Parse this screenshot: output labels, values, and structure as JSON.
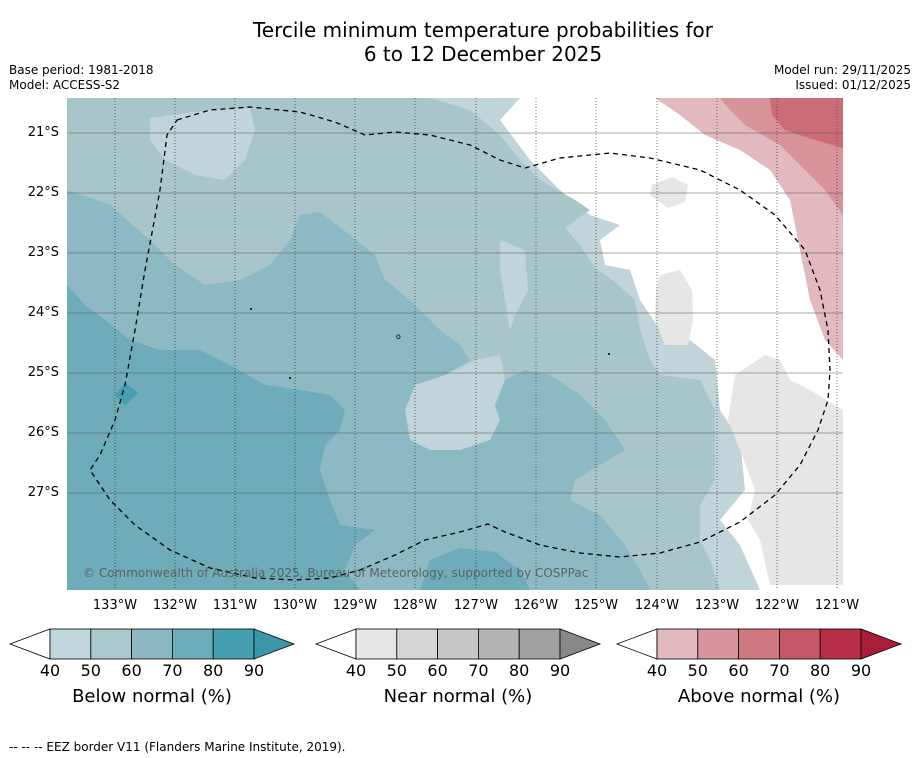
{
  "title": {
    "line1": "Tercile minimum temperature probabilities for",
    "line2": "6 to 12 December 2025"
  },
  "meta": {
    "base_period": "Base period: 1981-2018",
    "model": "Model: ACCESS-S2",
    "model_run": "Model run: 29/11/2025",
    "issued": "Issued: 01/12/2025"
  },
  "map": {
    "lat_ticks": [
      "21°S",
      "22°S",
      "23°S",
      "24°S",
      "25°S",
      "26°S",
      "27°S"
    ],
    "lon_ticks": [
      "133°W",
      "132°W",
      "131°W",
      "130°W",
      "129°W",
      "128°W",
      "127°W",
      "126°W",
      "125°W",
      "124°W",
      "123°W",
      "122°W",
      "121°W"
    ],
    "watermark": "© Commonwealth of Australia 2025, Bureau of Meteorology, supported by COSPPac",
    "colors": {
      "below_40": "#c1d4da",
      "below_50": "#a8c5c9",
      "below_60": "#8cb9c3",
      "below_70": "#6dacb8",
      "below_80": "#449fb1",
      "near_40": "#e6e6e6",
      "above_40": "#e2b9bf",
      "above_50": "#d7929a",
      "above_60": "#cc6c76"
    }
  },
  "colorbars": [
    {
      "label": "Below normal (%)",
      "ticks": [
        "40",
        "50",
        "60",
        "70",
        "80",
        "90"
      ],
      "colors": [
        "#c0d6dc",
        "#a8c8cd",
        "#8ab7c1",
        "#6dacb9",
        "#47a0b1",
        "#3a96a8"
      ]
    },
    {
      "label": "Near normal (%)",
      "ticks": [
        "40",
        "50",
        "60",
        "70",
        "80",
        "90"
      ],
      "colors": [
        "#e6e6e6",
        "#d6d6d6",
        "#c6c6c6",
        "#b4b4b4",
        "#a2a2a2",
        "#888888"
      ]
    },
    {
      "label": "Above normal (%)",
      "ticks": [
        "40",
        "50",
        "60",
        "70",
        "80",
        "90"
      ],
      "colors": [
        "#e2b9bf",
        "#d8949c",
        "#cf7882",
        "#c45868",
        "#b82e48",
        "#a81e38"
      ]
    }
  ],
  "footer": "-- -- -- EEZ border V11 (Flanders Marine Institute, 2019)."
}
